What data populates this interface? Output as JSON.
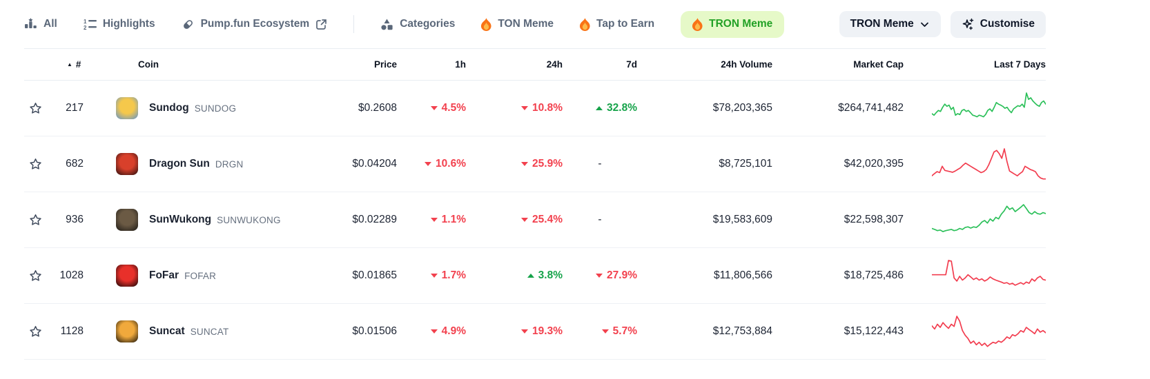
{
  "colors": {
    "red": "#f2414e",
    "green": "#16a34a",
    "spark_red": "#f23d4f",
    "spark_green": "#2cc05a",
    "active_tab_bg": "#e6f9c8",
    "active_tab_text": "#23a126"
  },
  "nav": {
    "tabs": [
      {
        "label": "All",
        "icon": "chart-bar-star"
      },
      {
        "label": "Highlights",
        "icon": "numbered-list"
      },
      {
        "label": "Pump.fun Ecosystem",
        "icon": "pill",
        "trailing_icon": "external-link"
      },
      {
        "label": "Categories",
        "icon": "shapes"
      },
      {
        "label": "TON Meme",
        "icon": "flame"
      },
      {
        "label": "Tap to Earn",
        "icon": "flame"
      },
      {
        "label": "TRON Meme",
        "icon": "flame",
        "active": true
      }
    ],
    "filter_dropdown": {
      "label": "TRON Meme",
      "icon": "chevron-down"
    },
    "customise_button": {
      "label": "Customise",
      "icon": "sparkles"
    }
  },
  "table": {
    "headers": [
      "#",
      "Coin",
      "Price",
      "1h",
      "24h",
      "7d",
      "24h Volume",
      "Market Cap",
      "Last 7 Days"
    ],
    "rows": [
      {
        "rank": "217",
        "name": "Sundog",
        "symbol": "SUNDOG",
        "price": "$0.2608",
        "change_1h": "-4.5%",
        "change_24h": "-10.8%",
        "change_7d": "+32.8%",
        "volume_24h": "$78,203,365",
        "market_cap": "$264,741,482",
        "trend": "up",
        "logo_colors": [
          "#f5c84b",
          "#5f93d0"
        ],
        "sparkline": [
          35,
          30,
          38,
          45,
          42,
          55,
          65,
          58,
          62,
          48,
          55,
          30,
          35,
          32,
          45,
          48,
          42,
          45,
          38,
          30,
          28,
          25,
          30,
          28,
          25,
          32,
          45,
          50,
          42,
          55,
          70,
          65,
          62,
          58,
          52,
          55,
          45,
          38,
          50,
          55,
          60,
          58,
          65,
          55,
          100,
          80,
          85,
          75,
          68,
          62,
          58,
          70,
          75,
          65
        ]
      },
      {
        "rank": "682",
        "name": "Dragon Sun",
        "symbol": "DRGN",
        "price": "$0.04204",
        "change_1h": "-10.6%",
        "change_24h": "-25.9%",
        "change_7d": "-",
        "volume_24h": "$8,725,101",
        "market_cap": "$42,020,395",
        "trend": "down",
        "logo_colors": [
          "#d8402b",
          "#2a0f0f"
        ],
        "sparkline": [
          15,
          22,
          28,
          25,
          45,
          32,
          30,
          28,
          26,
          30,
          35,
          40,
          48,
          55,
          50,
          45,
          40,
          35,
          30,
          25,
          28,
          35,
          50,
          70,
          90,
          95,
          85,
          70,
          100,
          60,
          30,
          25,
          20,
          15,
          22,
          28,
          45,
          40,
          35,
          32,
          28,
          15,
          8,
          5,
          5
        ]
      },
      {
        "rank": "936",
        "name": "SunWukong",
        "symbol": "SUNWUKONG",
        "price": "$0.02289",
        "change_1h": "-1.1%",
        "change_24h": "-25.4%",
        "change_7d": "-",
        "volume_24h": "$19,583,609",
        "market_cap": "$22,598,307",
        "trend": "up",
        "logo_colors": [
          "#6b5a44",
          "#1d1a16"
        ],
        "sparkline": [
          25,
          22,
          18,
          20,
          15,
          18,
          20,
          22,
          18,
          20,
          25,
          22,
          28,
          30,
          26,
          30,
          28,
          35,
          45,
          50,
          42,
          55,
          48,
          60,
          55,
          70,
          80,
          95,
          85,
          90,
          78,
          85,
          92,
          100,
          88,
          75,
          70,
          78,
          72,
          70,
          75,
          72
        ]
      },
      {
        "rank": "1028",
        "name": "FoFar",
        "symbol": "FOFAR",
        "price": "$0.01865",
        "change_1h": "-1.7%",
        "change_24h": "+3.8%",
        "change_7d": "-27.9%",
        "volume_24h": "$11,806,566",
        "market_cap": "$18,725,486",
        "trend": "down",
        "logo_colors": [
          "#e8302a",
          "#150808"
        ],
        "sparkline": [
          55,
          55,
          55,
          55,
          55,
          55,
          100,
          98,
          45,
          35,
          50,
          38,
          45,
          55,
          48,
          40,
          45,
          38,
          42,
          35,
          40,
          48,
          42,
          38,
          35,
          32,
          28,
          30,
          25,
          28,
          22,
          26,
          30,
          25,
          32,
          28,
          42,
          35,
          45,
          50,
          40,
          38
        ]
      },
      {
        "rank": "1128",
        "name": "Suncat",
        "symbol": "SUNCAT",
        "price": "$0.01506",
        "change_1h": "-4.9%",
        "change_24h": "-19.3%",
        "change_7d": "-5.7%",
        "volume_24h": "$12,753,884",
        "market_cap": "$15,122,443",
        "trend": "down",
        "logo_colors": [
          "#f0a93c",
          "#1a140a"
        ],
        "sparkline": [
          70,
          60,
          75,
          65,
          80,
          70,
          62,
          75,
          68,
          100,
          85,
          55,
          40,
          30,
          15,
          22,
          10,
          18,
          8,
          15,
          5,
          12,
          18,
          15,
          22,
          18,
          25,
          35,
          30,
          42,
          38,
          45,
          55,
          50,
          65,
          58,
          52,
          45,
          60,
          50,
          55,
          48
        ]
      }
    ]
  }
}
